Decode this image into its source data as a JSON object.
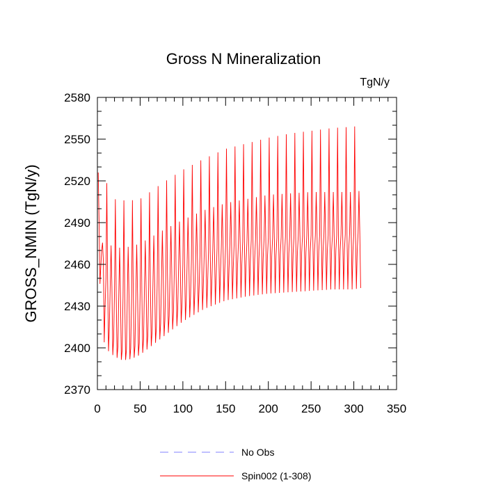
{
  "chart_data": {
    "type": "line",
    "title": "Gross N Mineralization",
    "units": "TgN/y",
    "xlabel": "",
    "ylabel": "GROSS_NMIN  (TgN/y)",
    "xlim": [
      0,
      350
    ],
    "ylim": [
      2370,
      2580
    ],
    "x_ticks": [
      0,
      50,
      100,
      150,
      200,
      250,
      300,
      350
    ],
    "y_ticks": [
      2370,
      2400,
      2430,
      2460,
      2490,
      2520,
      2550,
      2580
    ],
    "grid": false,
    "legend_position": "bottom-center",
    "legend": [
      {
        "name": "No Obs",
        "color": "#8080ff",
        "style": "dashed"
      },
      {
        "name": "Spin002 (1-308)",
        "color": "#ff0000",
        "style": "solid"
      }
    ],
    "series": [
      {
        "name": "No Obs",
        "color": "#8080ff",
        "style": "dashed",
        "values": []
      },
      {
        "name": "Spin002 (1-308)",
        "color": "#ff0000",
        "style": "solid",
        "x_range": [
          1,
          308
        ],
        "cycle_years": 5,
        "envelope": {
          "years": [
            1,
            5,
            10,
            15,
            20,
            25,
            30,
            40,
            50,
            75,
            100,
            125,
            150,
            175,
            200,
            225,
            250,
            275,
            300,
            308
          ],
          "peak_upper": [
            2526,
            2539,
            2520,
            2512,
            2507,
            2506,
            2506,
            2506,
            2507,
            2518,
            2528,
            2536,
            2543,
            2547,
            2551,
            2554,
            2556,
            2558,
            2559,
            2560
          ],
          "peak_lower": [
            2487,
            2475,
            2478,
            2474,
            2472,
            2472,
            2472,
            2473,
            2475,
            2484,
            2492,
            2499,
            2504,
            2507,
            2510,
            2511,
            2512,
            2512,
            2512,
            2513
          ],
          "mid_high": [
            2495,
            2470,
            2450,
            2445,
            2440,
            2437,
            2437,
            2437,
            2440,
            2450,
            2460,
            2468,
            2474,
            2477,
            2479,
            2480,
            2481,
            2481,
            2482,
            2483
          ],
          "mid_low": [
            2485,
            2450,
            2425,
            2413,
            2405,
            2400,
            2398,
            2400,
            2404,
            2418,
            2432,
            2446,
            2456,
            2462,
            2466,
            2468,
            2469,
            2470,
            2470,
            2470
          ],
          "trough": [
            2482,
            2410,
            2400,
            2396,
            2394,
            2392,
            2391,
            2392,
            2395,
            2407,
            2419,
            2428,
            2434,
            2437,
            2439,
            2440,
            2441,
            2442,
            2442,
            2443
          ]
        }
      }
    ]
  }
}
